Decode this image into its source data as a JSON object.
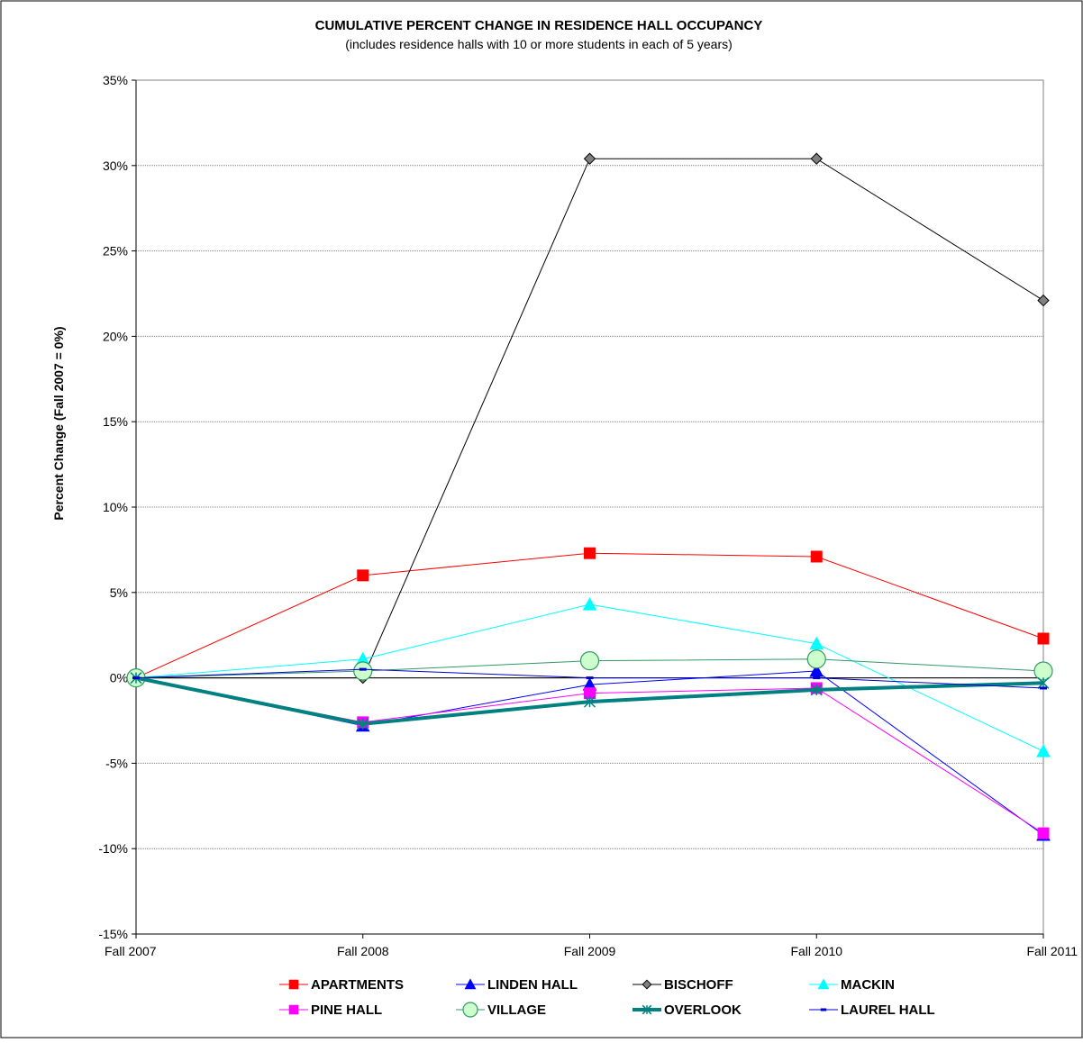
{
  "chart_data": {
    "type": "line",
    "title": "CUMULATIVE PERCENT CHANGE IN RESIDENCE HALL OCCUPANCY",
    "subtitle": "(includes residence halls with 10 or more students in each of 5 years)",
    "ylabel": "Percent Change (Fall 2007 = 0%)",
    "xlabel": "",
    "categories": [
      "Fall 2007",
      "Fall 2008",
      "Fall 2009",
      "Fall 2010",
      "Fall 2011"
    ],
    "ylim": [
      -15,
      35
    ],
    "yticks": [
      35,
      30,
      25,
      20,
      15,
      10,
      5,
      0,
      -5,
      -10,
      -15
    ],
    "ytick_labels": [
      "35%",
      "30%",
      "25%",
      "20%",
      "15%",
      "10%",
      "5%",
      "0%",
      "-5%",
      "-10%",
      "-15%"
    ],
    "grid": true,
    "legend_position": "bottom",
    "series": [
      {
        "name": "APARTMENTS",
        "values": [
          0,
          6.0,
          7.3,
          7.1,
          2.3
        ],
        "color": "#ff0000",
        "marker": "square",
        "line_width": 1
      },
      {
        "name": "LINDEN HALL",
        "values": [
          0,
          -2.8,
          -0.4,
          0.4,
          -9.2
        ],
        "color": "#0000ff",
        "marker": "triangle",
        "line_width": 1
      },
      {
        "name": "BISCHOFF",
        "values": [
          0,
          0,
          30.4,
          30.4,
          22.1
        ],
        "color": "#000000",
        "marker": "diamond",
        "line_width": 1
      },
      {
        "name": "MACKIN",
        "values": [
          0,
          1.1,
          4.3,
          2.0,
          -4.3
        ],
        "color": "#00ffff",
        "marker": "triangle",
        "line_width": 1
      },
      {
        "name": "PINE HALL",
        "values": [
          0,
          -2.6,
          -0.9,
          -0.6,
          -9.1
        ],
        "color": "#ff00ff",
        "marker": "square",
        "line_width": 1
      },
      {
        "name": "VILLAGE",
        "values": [
          0,
          0.4,
          1.0,
          1.1,
          0.4
        ],
        "color": "#339966",
        "marker": "circle",
        "line_width": 1
      },
      {
        "name": "OVERLOOK",
        "values": [
          0,
          -2.7,
          -1.4,
          -0.7,
          -0.3
        ],
        "color": "#008080",
        "marker": "star",
        "line_width": 4
      },
      {
        "name": "LAUREL HALL",
        "values": [
          0,
          0.5,
          0,
          0,
          -0.6
        ],
        "color": "#0000cc",
        "marker": "dash",
        "line_width": 1
      }
    ]
  }
}
